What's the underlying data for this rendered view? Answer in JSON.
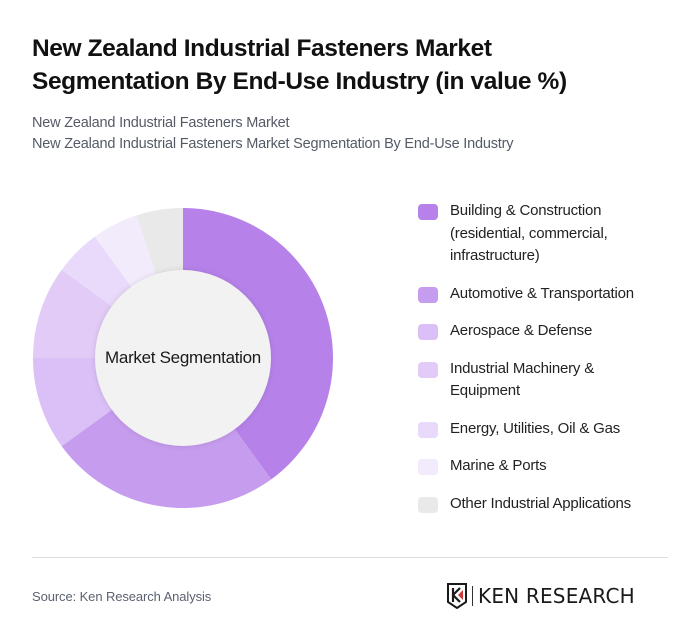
{
  "header": {
    "title": "New Zealand Industrial Fasteners Market Segmentation By End-Use Industry (in value %)",
    "subtitle_line1": "New Zealand Industrial Fasteners Market",
    "subtitle_line2": "New Zealand Industrial Fasteners Market Segmentation By End-Use Industry"
  },
  "chart": {
    "center_label": "Market Segmentation"
  },
  "legend": [
    {
      "label": "Building & Construction (residential, commercial, infrastructure)",
      "color": "#b682ea"
    },
    {
      "label": "Automotive & Transportation",
      "color": "#c69cee"
    },
    {
      "label": "Aerospace & Defense",
      "color": "#dac0f6"
    },
    {
      "label": "Industrial Machinery & Equipment",
      "color": "#e2cbf7"
    },
    {
      "label": "Energy, Utilities, Oil & Gas",
      "color": "#e9d9fa"
    },
    {
      "label": "Marine & Ports",
      "color": "#f2ebfc"
    },
    {
      "label": "Other Industrial Applications",
      "color": "#e9e9e9"
    }
  ],
  "footer": {
    "source": "Source: Ken Research Analysis",
    "logo_text": "KEN RESEARCH"
  },
  "chart_data": {
    "type": "pie",
    "variant": "donut",
    "title": "New Zealand Industrial Fasteners Market Segmentation By End-Use Industry (in value %)",
    "center_label": "Market Segmentation",
    "categories": [
      "Building & Construction (residential, commercial, infrastructure)",
      "Automotive & Transportation",
      "Aerospace & Defense",
      "Industrial Machinery & Equipment",
      "Energy, Utilities, Oil & Gas",
      "Marine & Ports",
      "Other Industrial Applications"
    ],
    "values": [
      40,
      25,
      10,
      10,
      5,
      5,
      5
    ],
    "colors": [
      "#b682ea",
      "#c69cee",
      "#dac0f6",
      "#e2cbf7",
      "#e9d9fa",
      "#f2ebfc",
      "#e9e9e9"
    ],
    "unit": "%",
    "start_angle": "12 o'clock, clockwise",
    "legend_position": "right",
    "data_labels": false
  }
}
